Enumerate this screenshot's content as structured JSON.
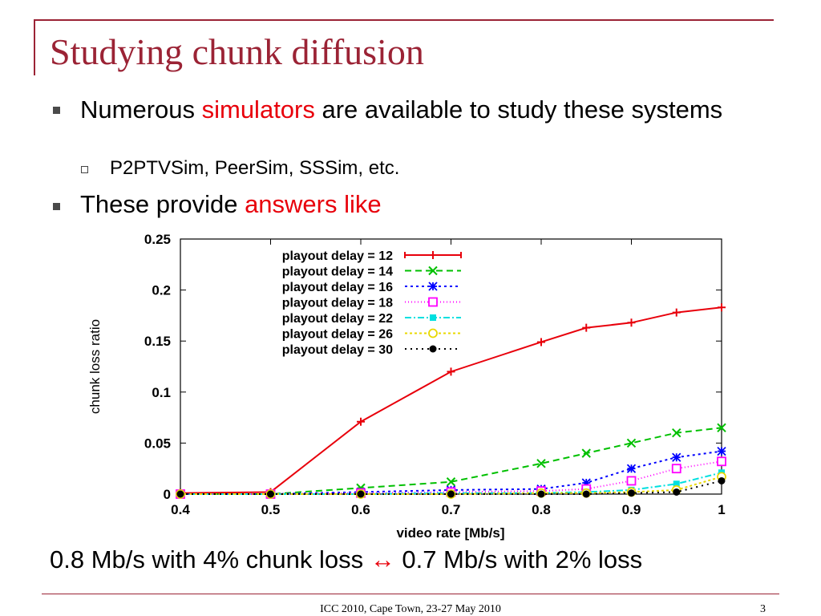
{
  "slide": {
    "title": "Studying chunk diffusion",
    "bullet1": {
      "pre": "Numerous ",
      "highlight": "simulators",
      "post": " are available to study these systems"
    },
    "sub1": "P2PTVSim, PeerSim, SSSim, etc.",
    "bullet2": {
      "pre": "These provide ",
      "highlight": "answers like"
    },
    "bottom": {
      "pre": "0.8 Mb/s with 4% chunk loss ",
      "arrow": "↔",
      "post": " 0.7 Mb/s with 2% loss"
    },
    "footer": "ICC 2010, Cape Town, 23-27 May 2010",
    "page": "3",
    "accent_color": "#9b2335",
    "highlight_color": "#e8000b"
  },
  "chart_data": {
    "type": "line",
    "xlabel": "video rate [Mb/s]",
    "ylabel": "chunk loss ratio",
    "xlim": [
      0.4,
      1.0
    ],
    "ylim": [
      0,
      0.25
    ],
    "xticks": [
      "0.4",
      "0.5",
      "0.6",
      "0.7",
      "0.8",
      "0.9",
      "1"
    ],
    "yticks": [
      "0",
      "0.05",
      "0.1",
      "0.15",
      "0.2",
      "0.25"
    ],
    "legend_position": "top-left",
    "series": [
      {
        "name": "playout delay = 12",
        "color": "#e8000b",
        "marker": "plus",
        "dash": "",
        "x": [
          0.4,
          0.5,
          0.6,
          0.7,
          0.8,
          0.85,
          0.9,
          0.95,
          1.0
        ],
        "y": [
          0.001,
          0.002,
          0.071,
          0.12,
          0.149,
          0.163,
          0.168,
          0.178,
          0.183
        ]
      },
      {
        "name": "playout delay = 14",
        "color": "#00c000",
        "marker": "x",
        "dash": "8,5",
        "x": [
          0.4,
          0.5,
          0.6,
          0.7,
          0.8,
          0.85,
          0.9,
          0.95,
          1.0
        ],
        "y": [
          0.0,
          0.0,
          0.006,
          0.012,
          0.03,
          0.04,
          0.05,
          0.06,
          0.065
        ]
      },
      {
        "name": "playout delay = 16",
        "color": "#0000ff",
        "marker": "star",
        "dash": "3,4",
        "x": [
          0.4,
          0.5,
          0.6,
          0.7,
          0.8,
          0.85,
          0.9,
          0.95,
          1.0
        ],
        "y": [
          0.0,
          0.0,
          0.002,
          0.004,
          0.005,
          0.011,
          0.025,
          0.036,
          0.042
        ]
      },
      {
        "name": "playout delay = 18",
        "color": "#ff00ff",
        "marker": "square",
        "dash": "1,3",
        "x": [
          0.4,
          0.5,
          0.6,
          0.7,
          0.8,
          0.85,
          0.9,
          0.95,
          1.0
        ],
        "y": [
          0.0,
          0.0,
          0.001,
          0.002,
          0.003,
          0.005,
          0.013,
          0.025,
          0.032
        ]
      },
      {
        "name": "playout delay = 22",
        "color": "#00e0e0",
        "marker": "filled-square",
        "dash": "8,3,2,3",
        "x": [
          0.4,
          0.5,
          0.6,
          0.7,
          0.8,
          0.85,
          0.9,
          0.95,
          1.0
        ],
        "y": [
          0.0,
          0.0,
          0.0,
          0.001,
          0.001,
          0.002,
          0.004,
          0.01,
          0.021
        ]
      },
      {
        "name": "playout delay = 26",
        "color": "#e8d800",
        "marker": "circle",
        "dash": "3,3",
        "x": [
          0.4,
          0.5,
          0.6,
          0.7,
          0.8,
          0.85,
          0.9,
          0.95,
          1.0
        ],
        "y": [
          0.0,
          0.0,
          0.0,
          0.0,
          0.001,
          0.001,
          0.002,
          0.004,
          0.017
        ]
      },
      {
        "name": "playout delay = 30",
        "color": "#000000",
        "marker": "filled-circle",
        "dash": "2,5",
        "x": [
          0.4,
          0.5,
          0.6,
          0.7,
          0.8,
          0.85,
          0.9,
          0.95,
          1.0
        ],
        "y": [
          0.0,
          0.0,
          0.0,
          0.0,
          0.0,
          0.0,
          0.001,
          0.002,
          0.013
        ]
      }
    ]
  }
}
